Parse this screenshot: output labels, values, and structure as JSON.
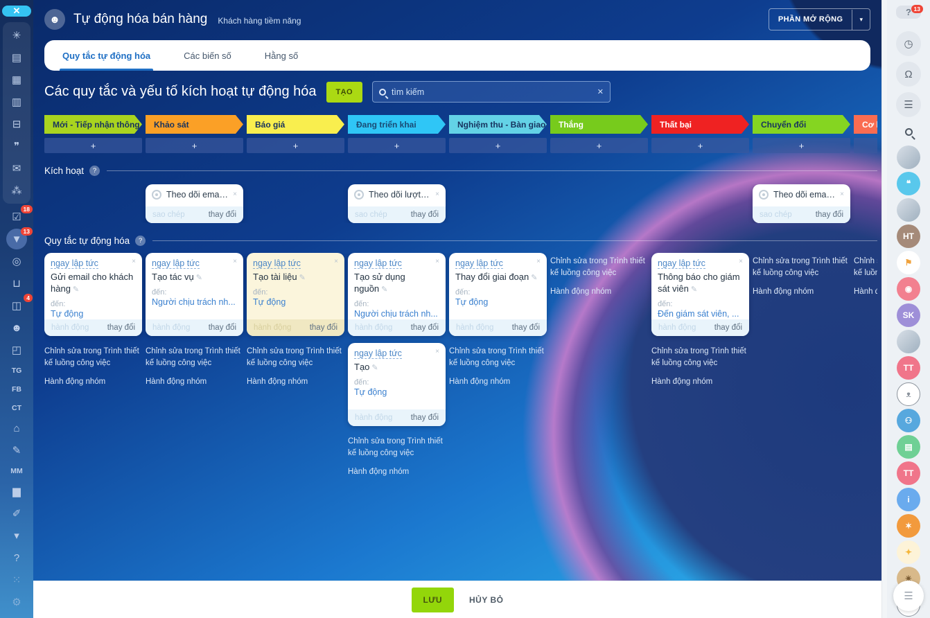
{
  "header": {
    "title": "Tự động hóa bán hàng",
    "subtitle": "Khách hàng tiềm năng",
    "extensions_button": "PHẦN MỞ RỘNG",
    "extensions_caret": "▾",
    "robot_glyph": "☻",
    "close_glyph": "✕"
  },
  "tabs": [
    {
      "id": "rules",
      "label": "Quy tắc tự động hóa",
      "active": true
    },
    {
      "id": "variables",
      "label": "Các biến số",
      "active": false
    },
    {
      "id": "constants",
      "label": "Hằng số",
      "active": false
    }
  ],
  "toolbar": {
    "title": "Các quy tắc và yếu tố kích hoạt tự động hóa",
    "create_button": "TẠO",
    "search_placeholder": "tìm kiếm",
    "search_clear": "✕"
  },
  "stage_add_label": "+",
  "stages": [
    {
      "label": "Mới - Tiếp nhận thông...",
      "color": "#a9d41f",
      "text_color": "#17325e"
    },
    {
      "label": "Khảo sát",
      "color": "#fba026",
      "text_color": "#17325e"
    },
    {
      "label": "Báo giá",
      "color": "#f9ee4e",
      "text_color": "#17325e"
    },
    {
      "label": "Đang triển khai",
      "color": "#2fc6f6",
      "text_color": "#1a4a74"
    },
    {
      "label": "Nghiệm thu - Bàn giao",
      "color": "#63d2e6",
      "text_color": "#17325e"
    },
    {
      "label": "Thắng",
      "color": "#77cb1c",
      "text_color": "#ffffff"
    },
    {
      "label": "Thất bại",
      "color": "#ef2222",
      "text_color": "#ffffff"
    },
    {
      "label": "Chuyển đổi",
      "color": "#85d521",
      "text_color": "#17325e"
    },
    {
      "label": "Cơ h",
      "color": "#fa6c51",
      "text_color": "#ffffff"
    }
  ],
  "triggers": {
    "section_title": "Kích hoạt",
    "help_glyph": "?",
    "copy_label": "sao chép",
    "change_label": "thay đổi",
    "close_glyph": "×",
    "cards": [
      {
        "col": 2,
        "title": "Theo dõi email đến"
      },
      {
        "col": 4,
        "title": "Theo dõi lượt xem ..."
      },
      {
        "col": 8,
        "title": "Theo dõi email đế..."
      }
    ]
  },
  "rules": {
    "section_title": "Quy tắc tự động hóa",
    "help_glyph": "?",
    "when_label": "ngay lập tức",
    "to_label": "đến:",
    "action_label": "hành động",
    "change_label": "thay đổi",
    "close_glyph": "×",
    "edit_glyph": "✎",
    "designer_link": "Chỉnh sửa trong Trình thiết kế luồng công việc",
    "group_link": "Hành động nhóm",
    "columns": [
      {
        "cards": [
          {
            "title": "Gửi email cho khách hàng",
            "target": "Tự động",
            "yellow": false
          }
        ],
        "links": true
      },
      {
        "cards": [
          {
            "title": "Tạo tác vụ",
            "target": "Người chịu trách nh...",
            "yellow": false
          }
        ],
        "links": true
      },
      {
        "cards": [
          {
            "title": "Tạo tài liệu",
            "target": "Tự động",
            "yellow": true
          }
        ],
        "links": true
      },
      {
        "cards": [
          {
            "title": "Tạo sử dụng nguồn",
            "target": "Người chịu trách nh...",
            "yellow": false
          },
          {
            "title": "Tạo",
            "target": "Tự động",
            "yellow": false
          }
        ],
        "links": true
      },
      {
        "cards": [
          {
            "title": "Thay đổi giai đoạn",
            "target": "Tự động",
            "yellow": false
          }
        ],
        "links": true
      },
      {
        "cards": [],
        "links": true
      },
      {
        "cards": [
          {
            "title": "Thông báo cho giám sát viên",
            "target": "Đến giám sát viên, ...",
            "yellow": false
          }
        ],
        "links": true
      },
      {
        "cards": [],
        "links": true
      },
      {
        "cards": [],
        "links": true
      }
    ]
  },
  "footer": {
    "save_label": "LƯU",
    "cancel_label": "HỦY BỎ"
  },
  "left_sidebar": {
    "close_label": "✕",
    "group_a": [
      {
        "name": "intranet-icon",
        "glyph": "✳"
      },
      {
        "name": "feed-icon",
        "glyph": "▤"
      },
      {
        "name": "calendar-icon",
        "glyph": "▦"
      },
      {
        "name": "documents-icon",
        "glyph": "▥"
      },
      {
        "name": "drive-icon",
        "glyph": "⊟"
      },
      {
        "name": "messenger-icon",
        "glyph": "❞"
      },
      {
        "name": "mail-icon",
        "glyph": "✉"
      },
      {
        "name": "teams-icon",
        "glyph": "⁂"
      }
    ],
    "group_b": [
      {
        "name": "tasks-icon",
        "glyph": "☑",
        "badge": "18"
      },
      {
        "name": "crm-funnel-icon",
        "glyph": "▼",
        "badge": "13",
        "active": true
      },
      {
        "name": "marketing-target-icon",
        "glyph": "◎"
      },
      {
        "name": "shop-cart-icon",
        "glyph": "⊔"
      },
      {
        "name": "contact-center-icon",
        "glyph": "◫",
        "badge": "4"
      },
      {
        "name": "robot-icon",
        "glyph": "☻"
      },
      {
        "name": "products-box-icon",
        "glyph": "◰"
      },
      {
        "name": "telegram-item",
        "type": "text",
        "label": "TG"
      },
      {
        "name": "facebook-item",
        "type": "text",
        "label": "FB"
      },
      {
        "name": "contact-item",
        "type": "text",
        "label": "CT"
      },
      {
        "name": "company-icon",
        "glyph": "⌂"
      },
      {
        "name": "sign-icon",
        "glyph": "✎"
      },
      {
        "name": "mm-item",
        "type": "text",
        "label": "MM"
      },
      {
        "name": "analytics-icon",
        "glyph": "▆"
      },
      {
        "name": "workflow-icon",
        "glyph": "✐"
      },
      {
        "name": "more-chevron-icon",
        "glyph": "▾"
      }
    ],
    "bottom": [
      {
        "name": "helpdesk-icon",
        "glyph": "?"
      },
      {
        "name": "structure-icon",
        "glyph": "⁙",
        "dim": true
      },
      {
        "name": "settings-gear-icon",
        "glyph": "⚙",
        "dim": true
      },
      {
        "name": "add-plus-icon",
        "glyph": "+",
        "dim": true
      }
    ]
  },
  "right_sidebar": {
    "help": {
      "glyph": "?",
      "badge": "13"
    },
    "tools": [
      {
        "name": "time-tracker-icon",
        "glyph": "◷"
      },
      {
        "name": "notifications-bell-icon",
        "glyph": "Ω"
      },
      {
        "name": "chat-lines-icon",
        "glyph": "☰"
      }
    ],
    "people": [
      {
        "name": "avatar",
        "type": "photo"
      },
      {
        "name": "messenger-bubble-icon",
        "type": "icon",
        "bg": "#59c8ec",
        "fg": "#ffffff",
        "glyph": "❝"
      },
      {
        "name": "avatar",
        "type": "photo"
      },
      {
        "name": "avatar-initials",
        "type": "initials",
        "label": "HT",
        "bg": "#a58a79"
      },
      {
        "name": "marketing-screen-icon",
        "type": "icon",
        "bg": "#ffffff",
        "fg": "#f0a23c",
        "glyph": "⚑"
      },
      {
        "name": "video-call-icon",
        "type": "icon",
        "bg": "#f2808f",
        "fg": "#ffffff",
        "glyph": "◉"
      },
      {
        "name": "avatar-initials",
        "type": "initials",
        "label": "SK",
        "bg": "#9e8fd8"
      },
      {
        "name": "avatar",
        "type": "photo"
      },
      {
        "name": "avatar-initials",
        "type": "initials",
        "label": "TT",
        "bg": "#f0758a"
      },
      {
        "name": "bear-sticker-icon",
        "type": "outline",
        "glyph": "ᴥ"
      },
      {
        "name": "group-users-icon",
        "type": "icon",
        "bg": "#57a8de",
        "fg": "#ffffff",
        "glyph": "⚇"
      },
      {
        "name": "notes-clipboard-icon",
        "type": "icon",
        "bg": "#6fd095",
        "fg": "#ffffff",
        "glyph": "▤"
      },
      {
        "name": "avatar-initials",
        "type": "initials",
        "label": "TT",
        "bg": "#f0758a"
      },
      {
        "name": "info-icon",
        "type": "icon",
        "bg": "#6aabee",
        "fg": "#ffffff",
        "glyph": "i"
      },
      {
        "name": "sticker-icon",
        "type": "icon",
        "bg": "#f29a3d",
        "fg": "#ffffff",
        "glyph": "✶"
      },
      {
        "name": "lightbulb-icon",
        "type": "icon",
        "bg": "#fdf3d8",
        "fg": "#f5b73b",
        "glyph": "✦"
      },
      {
        "name": "eagle-sticker-icon",
        "type": "icon",
        "bg": "#d8b98a",
        "fg": "#7a5b32",
        "glyph": "✴"
      },
      {
        "name": "security-shield-icon",
        "type": "outline",
        "glyph": "✪"
      }
    ],
    "menu_glyph": "☰"
  },
  "colors": {
    "accent_green": "#abd913",
    "save_green": "#93d60a",
    "link_blue": "#3a80cf",
    "active_tab_blue": "#1f6fc4",
    "badge_red": "#ef4436",
    "close_cyan": "#35c3f2"
  }
}
